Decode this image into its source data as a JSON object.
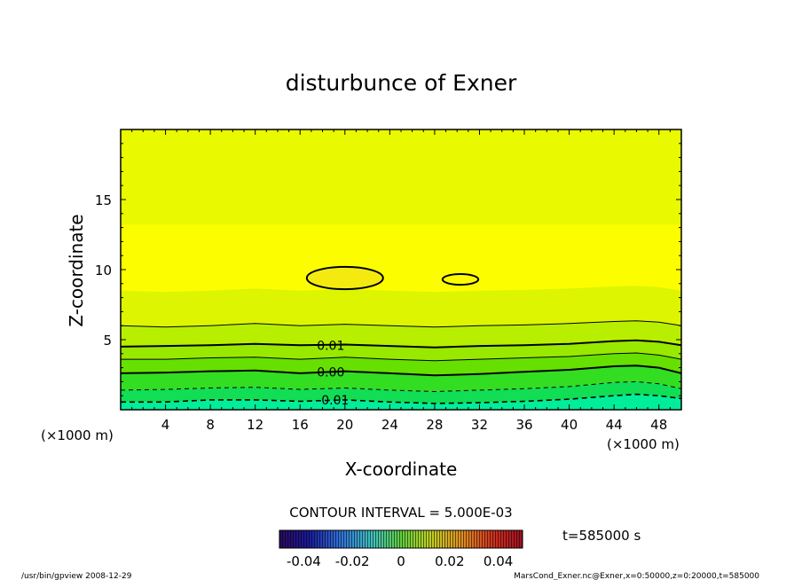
{
  "chart_data": {
    "type": "contour",
    "title": "disturbunce of Exner",
    "xlabel": "X-coordinate",
    "ylabel": "Z-coordinate",
    "x_unit": "(×1000 m)",
    "y_unit": "(×1000 m)",
    "xlim": [
      0,
      50
    ],
    "ylim": [
      0,
      20
    ],
    "x_ticks": [
      4,
      8,
      12,
      16,
      20,
      24,
      28,
      32,
      36,
      40,
      44,
      48
    ],
    "y_ticks": [
      5,
      10,
      15
    ],
    "contour_interval_text": "CONTOUR INTERVAL = 5.000E-03",
    "contour_labels": [
      {
        "text": "0.01",
        "x": 17.5,
        "z": 4.6
      },
      {
        "text": "0.00",
        "x": 17.5,
        "z": 2.7
      },
      {
        "text": "-0.01",
        "x": 17.5,
        "z": 0.7
      }
    ],
    "contours": [
      {
        "level": 0.01,
        "style": "solid-thick",
        "points": [
          [
            0,
            4.5
          ],
          [
            4,
            4.55
          ],
          [
            8,
            4.6
          ],
          [
            12,
            4.7
          ],
          [
            16,
            4.6
          ],
          [
            20,
            4.65
          ],
          [
            24,
            4.55
          ],
          [
            28,
            4.45
          ],
          [
            32,
            4.55
          ],
          [
            36,
            4.6
          ],
          [
            40,
            4.7
          ],
          [
            44,
            4.9
          ],
          [
            46,
            4.95
          ],
          [
            48,
            4.85
          ],
          [
            50,
            4.6
          ]
        ]
      },
      {
        "level": 0.015,
        "style": "solid-thin",
        "points": [
          [
            0,
            6.0
          ],
          [
            4,
            5.9
          ],
          [
            8,
            6.0
          ],
          [
            12,
            6.15
          ],
          [
            16,
            6.0
          ],
          [
            20,
            6.1
          ],
          [
            24,
            6.0
          ],
          [
            28,
            5.9
          ],
          [
            32,
            6.0
          ],
          [
            36,
            6.05
          ],
          [
            40,
            6.15
          ],
          [
            44,
            6.3
          ],
          [
            46,
            6.35
          ],
          [
            48,
            6.25
          ],
          [
            50,
            6.0
          ]
        ]
      },
      {
        "level": 0.005,
        "style": "solid-thin",
        "points": [
          [
            0,
            3.6
          ],
          [
            4,
            3.6
          ],
          [
            8,
            3.7
          ],
          [
            12,
            3.75
          ],
          [
            16,
            3.6
          ],
          [
            20,
            3.75
          ],
          [
            24,
            3.6
          ],
          [
            28,
            3.5
          ],
          [
            32,
            3.6
          ],
          [
            36,
            3.7
          ],
          [
            40,
            3.8
          ],
          [
            44,
            4.0
          ],
          [
            46,
            4.05
          ],
          [
            48,
            3.9
          ],
          [
            50,
            3.6
          ]
        ]
      },
      {
        "level": 0.0,
        "style": "solid-thick",
        "points": [
          [
            0,
            2.6
          ],
          [
            4,
            2.65
          ],
          [
            8,
            2.75
          ],
          [
            12,
            2.8
          ],
          [
            16,
            2.6
          ],
          [
            20,
            2.75
          ],
          [
            24,
            2.6
          ],
          [
            28,
            2.45
          ],
          [
            32,
            2.55
          ],
          [
            36,
            2.7
          ],
          [
            40,
            2.85
          ],
          [
            44,
            3.1
          ],
          [
            46,
            3.15
          ],
          [
            48,
            3.0
          ],
          [
            50,
            2.6
          ]
        ]
      },
      {
        "level": -0.005,
        "style": "dashed",
        "points": [
          [
            0,
            1.4
          ],
          [
            4,
            1.45
          ],
          [
            8,
            1.55
          ],
          [
            12,
            1.6
          ],
          [
            16,
            1.45
          ],
          [
            20,
            1.55
          ],
          [
            24,
            1.4
          ],
          [
            28,
            1.3
          ],
          [
            32,
            1.4
          ],
          [
            36,
            1.5
          ],
          [
            40,
            1.65
          ],
          [
            44,
            1.95
          ],
          [
            46,
            2.0
          ],
          [
            48,
            1.85
          ],
          [
            50,
            1.5
          ]
        ]
      },
      {
        "level": -0.01,
        "style": "dashed-thick",
        "points": [
          [
            0,
            0.55
          ],
          [
            4,
            0.55
          ],
          [
            8,
            0.7
          ],
          [
            12,
            0.7
          ],
          [
            16,
            0.6
          ],
          [
            20,
            0.7
          ],
          [
            24,
            0.55
          ],
          [
            28,
            0.45
          ],
          [
            32,
            0.5
          ],
          [
            36,
            0.6
          ],
          [
            40,
            0.75
          ],
          [
            44,
            1.0
          ],
          [
            46,
            1.1
          ],
          [
            48,
            1.0
          ],
          [
            50,
            0.8
          ]
        ]
      }
    ],
    "closed_contours": [
      {
        "level": 0.02,
        "cx": 20.0,
        "cz": 9.4,
        "rx": 3.4,
        "rz": 0.8
      },
      {
        "level": 0.02,
        "cx": 30.3,
        "cz": 9.3,
        "rx": 1.6,
        "rz": 0.38
      }
    ],
    "colorbar": {
      "ticks": [
        "-0.04",
        "-0.02",
        "0",
        "0.02",
        "0.04"
      ],
      "min": -0.05,
      "max": 0.05
    },
    "colors": {
      "background_yellow": "#ffff00",
      "yellow_green": "#ddf500",
      "light_green": "#b8ef00",
      "green": "#66e000",
      "mid_green": "#33dd22",
      "aqua_green": "#00ee99",
      "core_gold": "#f4ea10"
    }
  },
  "time_label": "t=585000 s",
  "footer_left": "/usr/bin/gpview   2008-12-29",
  "footer_right": "MarsCond_Exner.nc@Exner,x=0:50000,z=0:20000,t=585000"
}
